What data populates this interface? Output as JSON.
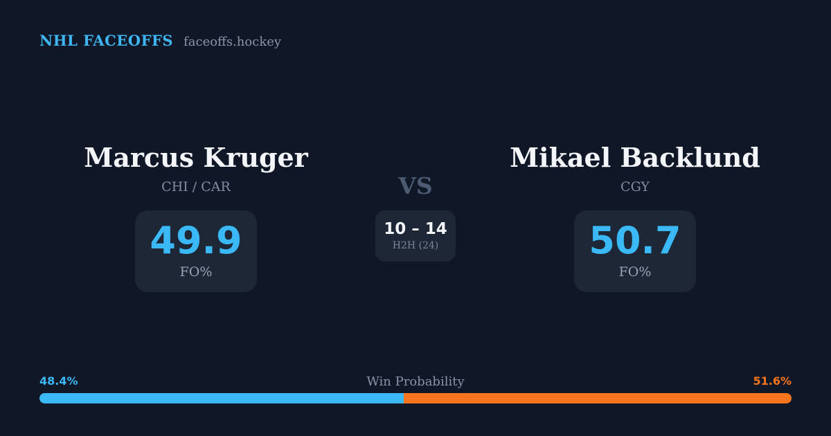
{
  "header": {
    "brand": "NHL FACEOFFS",
    "site": "faceoffs.hockey"
  },
  "players": {
    "left": {
      "name": "Marcus Kruger",
      "teams": "CHI / CAR",
      "fo_pct": "49.9",
      "stat_label": "FO%"
    },
    "right": {
      "name": "Mikael Backlund",
      "teams": "CGY",
      "fo_pct": "50.7",
      "stat_label": "FO%"
    }
  },
  "matchup": {
    "vs_label": "VS",
    "h2h_score": "10 – 14",
    "h2h_label": "H2H (24)"
  },
  "win_probability": {
    "title": "Win Probability",
    "left_pct_label": "48.4%",
    "right_pct_label": "51.6%",
    "left_value": 48.4,
    "right_value": 51.6
  },
  "colors": {
    "background": "#101726",
    "card": "#1d2735",
    "accent_blue": "#3bb9f6",
    "accent_orange": "#f7761d"
  }
}
